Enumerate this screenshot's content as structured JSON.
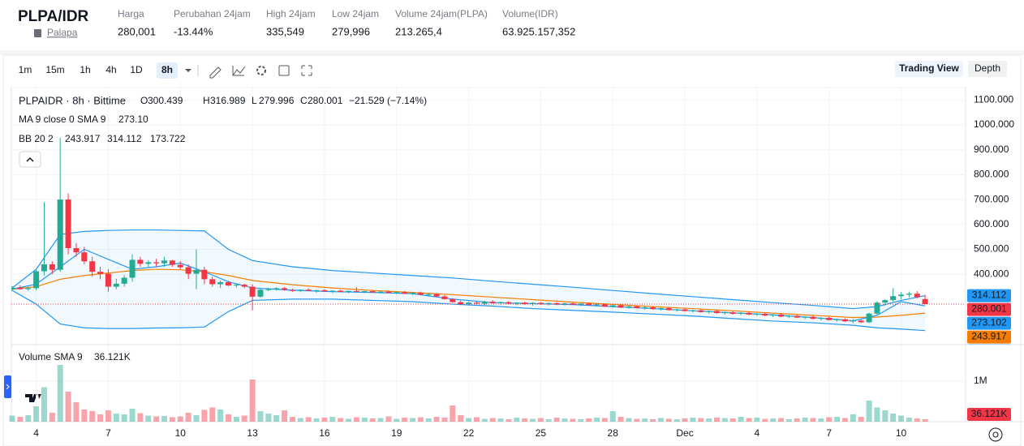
{
  "header": {
    "title": "PLPA/IDR",
    "subtitle": "Palapa",
    "stats": [
      {
        "label": "Harga",
        "value": "280,001",
        "color": "#22ab94"
      },
      {
        "label": "Perubahan 24jam",
        "value": "-13.44%",
        "color": "#f23645"
      },
      {
        "label": "High 24jam",
        "value": "335,549",
        "color": "#131722"
      },
      {
        "label": "Low 24jam",
        "value": "279,996",
        "color": "#131722"
      },
      {
        "label": "Volume 24jam(PLPA)",
        "value": "213.265,4",
        "color": "#131722"
      },
      {
        "label": "Volume(IDR)",
        "value": "63.925.157,352",
        "color": "#131722"
      }
    ]
  },
  "toolbar": {
    "intervals": [
      "1m",
      "15m",
      "1h",
      "4h",
      "1D",
      "8h"
    ],
    "active_interval": 5,
    "views": [
      "Trading View",
      "Depth"
    ],
    "active_view": 0
  },
  "chart_data": {
    "type": "candlestick",
    "legend": {
      "symbol": "PLPAIDR · 8h · Bittime",
      "ohlc_letters": [
        "O",
        "H",
        "L",
        "C"
      ],
      "change": "−21.529 (−7.14%)",
      "ma_label": "MA 9 close 0 SMA 9",
      "ma_value_label": "273.10",
      "bb_label": "BB 20 2"
    },
    "up_color": "#22ab94",
    "down_color": "#f23645",
    "candles": [
      [
        340,
        352,
        332,
        346
      ],
      [
        346,
        355,
        338,
        340
      ],
      [
        340,
        350,
        334,
        344
      ],
      [
        344,
        420,
        336,
        412
      ],
      [
        412,
        690,
        395,
        440
      ],
      [
        440,
        452,
        400,
        418
      ],
      [
        418,
        948,
        410,
        700
      ],
      [
        700,
        725,
        480,
        505
      ],
      [
        505,
        525,
        470,
        488
      ],
      [
        488,
        510,
        440,
        452
      ],
      [
        452,
        470,
        390,
        410
      ],
      [
        410,
        430,
        380,
        402
      ],
      [
        402,
        420,
        330,
        350
      ],
      [
        350,
        382,
        340,
        362
      ],
      [
        362,
        396,
        350,
        386
      ],
      [
        386,
        480,
        370,
        458
      ],
      [
        458,
        470,
        430,
        442
      ],
      [
        442,
        456,
        425,
        448
      ],
      [
        448,
        462,
        430,
        444
      ],
      [
        444,
        470,
        430,
        455
      ],
      [
        455,
        458,
        430,
        438
      ],
      [
        438,
        452,
        420,
        428
      ],
      [
        428,
        440,
        380,
        402
      ],
      [
        402,
        500,
        340,
        418
      ],
      [
        418,
        430,
        360,
        380
      ],
      [
        380,
        390,
        350,
        360
      ],
      [
        360,
        375,
        345,
        368
      ],
      [
        368,
        372,
        352,
        355
      ],
      [
        355,
        364,
        346,
        358
      ],
      [
        358,
        362,
        344,
        350
      ],
      [
        350,
        360,
        255,
        310
      ],
      [
        310,
        342,
        306,
        338
      ],
      [
        338,
        346,
        332,
        340
      ],
      [
        340,
        348,
        334,
        344
      ],
      [
        344,
        348,
        334,
        338
      ],
      [
        336,
        342,
        330,
        334
      ],
      [
        334,
        340,
        328,
        338
      ],
      [
        338,
        344,
        332,
        333
      ],
      [
        333,
        338,
        326,
        336
      ],
      [
        336,
        340,
        330,
        331
      ],
      [
        331,
        336,
        325,
        334
      ],
      [
        334,
        338,
        328,
        329
      ],
      [
        329,
        335,
        324,
        333
      ],
      [
        333,
        348,
        328,
        330
      ],
      [
        330,
        334,
        324,
        332
      ],
      [
        332,
        336,
        326,
        327
      ],
      [
        327,
        333,
        322,
        330
      ],
      [
        330,
        334,
        324,
        325
      ],
      [
        325,
        331,
        320,
        328
      ],
      [
        328,
        332,
        320,
        322
      ],
      [
        322,
        328,
        316,
        325
      ],
      [
        325,
        330,
        316,
        318
      ],
      [
        318,
        324,
        310,
        320
      ],
      [
        320,
        324,
        308,
        311
      ],
      [
        311,
        316,
        298,
        300
      ],
      [
        300,
        304,
        286,
        288
      ],
      [
        288,
        294,
        276,
        280
      ],
      [
        280,
        290,
        274,
        286
      ],
      [
        286,
        292,
        278,
        282
      ],
      [
        282,
        294,
        276,
        290
      ],
      [
        290,
        296,
        282,
        284
      ],
      [
        284,
        290,
        278,
        288
      ],
      [
        288,
        292,
        280,
        282
      ],
      [
        282,
        288,
        276,
        286
      ],
      [
        286,
        290,
        278,
        280
      ],
      [
        280,
        288,
        274,
        285
      ],
      [
        285,
        289,
        278,
        281
      ],
      [
        281,
        287,
        275,
        284
      ],
      [
        284,
        288,
        276,
        279
      ],
      [
        279,
        286,
        274,
        283
      ],
      [
        283,
        287,
        276,
        278
      ],
      [
        278,
        284,
        272,
        282
      ],
      [
        282,
        286,
        274,
        276
      ],
      [
        276,
        282,
        270,
        279
      ],
      [
        279,
        283,
        268,
        270
      ],
      [
        270,
        278,
        266,
        275
      ],
      [
        275,
        279,
        264,
        266
      ],
      [
        266,
        274,
        262,
        271
      ],
      [
        271,
        275,
        262,
        264
      ],
      [
        264,
        270,
        258,
        267
      ],
      [
        267,
        271,
        258,
        260
      ],
      [
        260,
        266,
        254,
        264
      ],
      [
        264,
        268,
        254,
        256
      ],
      [
        256,
        262,
        250,
        259
      ],
      [
        259,
        264,
        250,
        252
      ],
      [
        252,
        258,
        246,
        255
      ],
      [
        255,
        259,
        246,
        248
      ],
      [
        248,
        255,
        242,
        252
      ],
      [
        252,
        256,
        242,
        244
      ],
      [
        244,
        250,
        238,
        247
      ],
      [
        247,
        252,
        238,
        241
      ],
      [
        241,
        248,
        236,
        245
      ],
      [
        245,
        249,
        236,
        238
      ],
      [
        238,
        244,
        232,
        241
      ],
      [
        241,
        245,
        232,
        234
      ],
      [
        234,
        240,
        228,
        238
      ],
      [
        238,
        242,
        228,
        230
      ],
      [
        230,
        236,
        224,
        233
      ],
      [
        233,
        237,
        224,
        226
      ],
      [
        226,
        232,
        220,
        229
      ],
      [
        229,
        233,
        218,
        221
      ],
      [
        221,
        228,
        214,
        225
      ],
      [
        225,
        229,
        214,
        216
      ],
      [
        216,
        222,
        210,
        219
      ],
      [
        219,
        223,
        208,
        211
      ],
      [
        211,
        220,
        204,
        214
      ],
      [
        214,
        218,
        204,
        207
      ],
      [
        207,
        246,
        204,
        242
      ],
      [
        242,
        292,
        238,
        286
      ],
      [
        286,
        300,
        274,
        296
      ],
      [
        296,
        345,
        290,
        312
      ],
      [
        312,
        328,
        300,
        318
      ],
      [
        318,
        330,
        306,
        322
      ],
      [
        322,
        332,
        304,
        308
      ],
      [
        300.439,
        316.989,
        279.996,
        280.001
      ]
    ],
    "volume": [
      150000,
      120000,
      160000,
      380000,
      850000,
      220000,
      1400000,
      740000,
      480000,
      300000,
      260000,
      180000,
      280000,
      200000,
      180000,
      320000,
      210000,
      150000,
      130000,
      140000,
      110000,
      130000,
      220000,
      160000,
      290000,
      350000,
      300000,
      180000,
      120000,
      150000,
      1040000,
      260000,
      200000,
      160000,
      280000,
      120000,
      90000,
      110000,
      80000,
      100000,
      120000,
      90000,
      70000,
      110000,
      100000,
      80000,
      90000,
      130000,
      70000,
      100000,
      90000,
      110000,
      80000,
      120000,
      100000,
      400000,
      160000,
      90000,
      110000,
      70000,
      90000,
      80000,
      60000,
      100000,
      80000,
      70000,
      90000,
      60000,
      100000,
      80000,
      70000,
      60000,
      80000,
      100000,
      90000,
      260000,
      120000,
      90000,
      70000,
      80000,
      60000,
      90000,
      70000,
      60000,
      80000,
      100000,
      90000,
      80000,
      100000,
      90000,
      80000,
      120000,
      90000,
      100000,
      70000,
      80000,
      90000,
      60000,
      80000,
      100000,
      90000,
      80000,
      110000,
      120000,
      90000,
      180000,
      120000,
      520000,
      350000,
      280000,
      200000,
      150000,
      100000,
      80000,
      60000
    ],
    "volume_sma": {
      "name": "Volume SMA 9",
      "value": 36121,
      "value_label": "36.121K",
      "color": "#f23645"
    },
    "ma": {
      "color": "#2196f3",
      "x": [
        0,
        3,
        6,
        9,
        12,
        15,
        18,
        21,
        24,
        27,
        30,
        35,
        40,
        45,
        50,
        55,
        60,
        65,
        70,
        75,
        80,
        85,
        90,
        95,
        100,
        105,
        108,
        111,
        114
      ],
      "values": [
        340,
        360,
        430,
        500,
        460,
        420,
        430,
        445,
        410,
        370,
        345,
        336,
        330,
        327,
        322,
        300,
        286,
        282,
        278,
        270,
        262,
        253,
        245,
        237,
        226,
        213,
        235,
        290,
        273.102
      ]
    },
    "bollinger": {
      "x": [
        0,
        3,
        6,
        9,
        12,
        15,
        18,
        21,
        24,
        27,
        30,
        35,
        40,
        45,
        50,
        55,
        60,
        65,
        70,
        75,
        80,
        85,
        90,
        95,
        100,
        105,
        108,
        111,
        114
      ],
      "middle": {
        "color": "#f57c00",
        "values": [
          340,
          350,
          380,
          395,
          405,
          415,
          420,
          418,
          410,
          395,
          375,
          358,
          345,
          335,
          327,
          318,
          308,
          298,
          288,
          279,
          270,
          262,
          253,
          244,
          235,
          226,
          228,
          235,
          243.917
        ]
      },
      "upper": {
        "color": "#2196f3",
        "values": [
          345,
          420,
          560,
          572,
          576,
          578,
          578,
          576,
          574,
          500,
          455,
          430,
          415,
          405,
          395,
          385,
          372,
          360,
          348,
          335,
          322,
          310,
          298,
          286,
          275,
          262,
          270,
          295,
          314.112
        ]
      },
      "lower": {
        "color": "#2196f3",
        "values": [
          335,
          280,
          200,
          185,
          182,
          182,
          184,
          185,
          188,
          250,
          295,
          300,
          300,
          295,
          290,
          280,
          272,
          262,
          255,
          248,
          240,
          232,
          222,
          212,
          205,
          195,
          185,
          180,
          173.722
        ]
      }
    },
    "xlim": [
      -0.1,
      119.05
    ],
    "xticks": [
      {
        "value": 3,
        "label": "4"
      },
      {
        "value": 12,
        "label": "7"
      },
      {
        "value": 21,
        "label": "10"
      },
      {
        "value": 30,
        "label": "13"
      },
      {
        "value": 39,
        "label": "16"
      },
      {
        "value": 48,
        "label": "19"
      },
      {
        "value": 57,
        "label": "22"
      },
      {
        "value": 66,
        "label": "25"
      },
      {
        "value": 75,
        "label": "28"
      },
      {
        "value": 84,
        "label": "Dec"
      },
      {
        "value": 93,
        "label": "4"
      },
      {
        "value": 102,
        "label": "7"
      },
      {
        "value": 111,
        "label": "10"
      }
    ],
    "ylim": [
      117.3,
      1149.8
    ],
    "yticks": [
      {
        "value": 400,
        "label": "400.000"
      },
      {
        "value": 500,
        "label": "500.000"
      },
      {
        "value": 600,
        "label": "600.000"
      },
      {
        "value": 700,
        "label": "700.000"
      },
      {
        "value": 800,
        "label": "800.000"
      },
      {
        "value": 900,
        "label": "900.000"
      },
      {
        "value": 1000,
        "label": "1000.000"
      },
      {
        "value": 1100,
        "label": "1100.000"
      }
    ],
    "volume_ylim": [
      0,
      1760000
    ],
    "volume_yticks": [
      {
        "value": 1000000,
        "label": "1M"
      }
    ],
    "grid": true
  }
}
